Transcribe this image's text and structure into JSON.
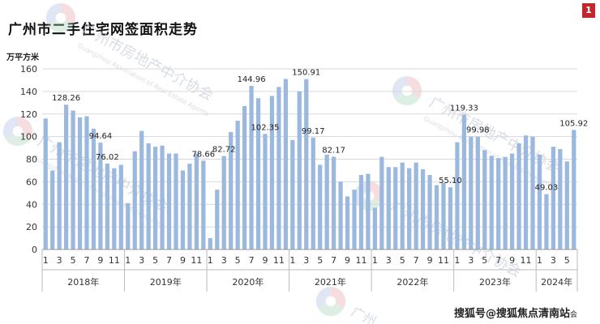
{
  "header": {
    "title": "广州市二手住宅网签面积走势",
    "unit": "万平方米",
    "badge": "1"
  },
  "watermark": {
    "name": "广州市房地产中介协会",
    "english": "Guangzhou Association of Real Estate Agents",
    "partial": "广州"
  },
  "credit": {
    "text": "搜狐号@搜狐焦点清南站",
    "tail": "会"
  },
  "colors": {
    "bar": "#9bb9de",
    "bar_stroke": "#7ea2cf",
    "grid": "#d9d9d9",
    "badge": "#c1272d",
    "watermark": "#c8cedc"
  },
  "chart_data": {
    "type": "bar",
    "ylim": [
      0,
      160
    ],
    "yticks": [
      0,
      20,
      40,
      60,
      80,
      100,
      120,
      140,
      160
    ],
    "grid": true,
    "years": [
      {
        "label": "2018年",
        "months": 12
      },
      {
        "label": "2019年",
        "months": 12
      },
      {
        "label": "2020年",
        "months": 12
      },
      {
        "label": "2021年",
        "months": 12
      },
      {
        "label": "2022年",
        "months": 12
      },
      {
        "label": "2023年",
        "months": 12
      },
      {
        "label": "2024年",
        "months": 6
      }
    ],
    "month_ticks": [
      "1",
      "3",
      "5",
      "7",
      "9",
      "11"
    ],
    "values": [
      116,
      70,
      95,
      128.26,
      123,
      117,
      118,
      107,
      94.64,
      76.02,
      72,
      75,
      41,
      87,
      105,
      94,
      91,
      92,
      85,
      85,
      70,
      76,
      85,
      78.66,
      10,
      53,
      82.72,
      104,
      114,
      127,
      144.96,
      134,
      102.35,
      136,
      144,
      151,
      97,
      140,
      150.91,
      99.17,
      75,
      84,
      82.17,
      60,
      47,
      53,
      66,
      67,
      37,
      82,
      73,
      73,
      77,
      72,
      77,
      71,
      66,
      57,
      59,
      55.1,
      95,
      119.33,
      100,
      99.98,
      88,
      83,
      81,
      82,
      85,
      94,
      101,
      100,
      84,
      49.03,
      91,
      89,
      78,
      105.92
    ],
    "data_labels": [
      {
        "index": 3,
        "text": "128.26"
      },
      {
        "index": 8,
        "text": "94.64"
      },
      {
        "index": 9,
        "text": "76.02"
      },
      {
        "index": 23,
        "text": "78.66"
      },
      {
        "index": 26,
        "text": "82.72"
      },
      {
        "index": 30,
        "text": "144.96"
      },
      {
        "index": 32,
        "text": "102.35"
      },
      {
        "index": 38,
        "text": "150.91"
      },
      {
        "index": 39,
        "text": "99.17"
      },
      {
        "index": 42,
        "text": "82.17"
      },
      {
        "index": 59,
        "text": "55.10"
      },
      {
        "index": 61,
        "text": "119.33"
      },
      {
        "index": 63,
        "text": "99.98"
      },
      {
        "index": 73,
        "text": "49.03"
      },
      {
        "index": 77,
        "text": "105.92"
      }
    ]
  }
}
